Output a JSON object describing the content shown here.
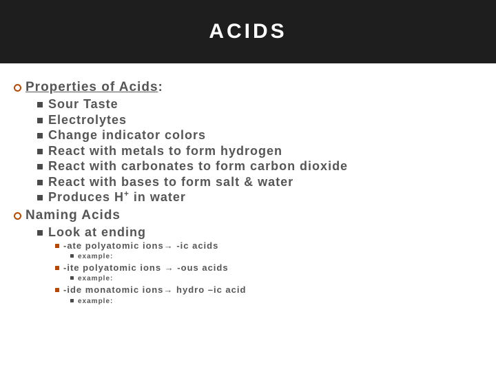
{
  "title": "ACIDS",
  "colors": {
    "title_bg": "#1e1e1e",
    "title_text": "#ffffff",
    "body_text": "#555555",
    "circle_bullet": "#b94700",
    "square_bullet_dark": "#4a4a4a",
    "square_bullet_orange": "#b94700",
    "page_bg": "#ffffff"
  },
  "sections": [
    {
      "heading": "Properties of Acids",
      "heading_suffix": ":",
      "underline": true,
      "items": [
        "Sour Taste",
        "Electrolytes",
        "Change indicator colors",
        "React with metals to form hydrogen",
        "React with carbonates to form carbon dioxide",
        "React with bases to form salt & water",
        "Produces H+ in water"
      ]
    },
    {
      "heading": "Naming Acids",
      "underline": false,
      "items": [
        {
          "text": "Look at ending",
          "sub": [
            {
              "rule_pre": "-ate polyatomic ions",
              "rule_post": " -ic acids",
              "example_label": "example:"
            },
            {
              "rule_pre": "-ite polyatomic ions ",
              "rule_post": " -ous acids",
              "example_label": "example:"
            },
            {
              "rule_pre": "-ide monatomic ions",
              "rule_post": " hydro –ic acid",
              "example_label": "example:"
            }
          ]
        }
      ]
    }
  ],
  "arrow_glyph": "→"
}
